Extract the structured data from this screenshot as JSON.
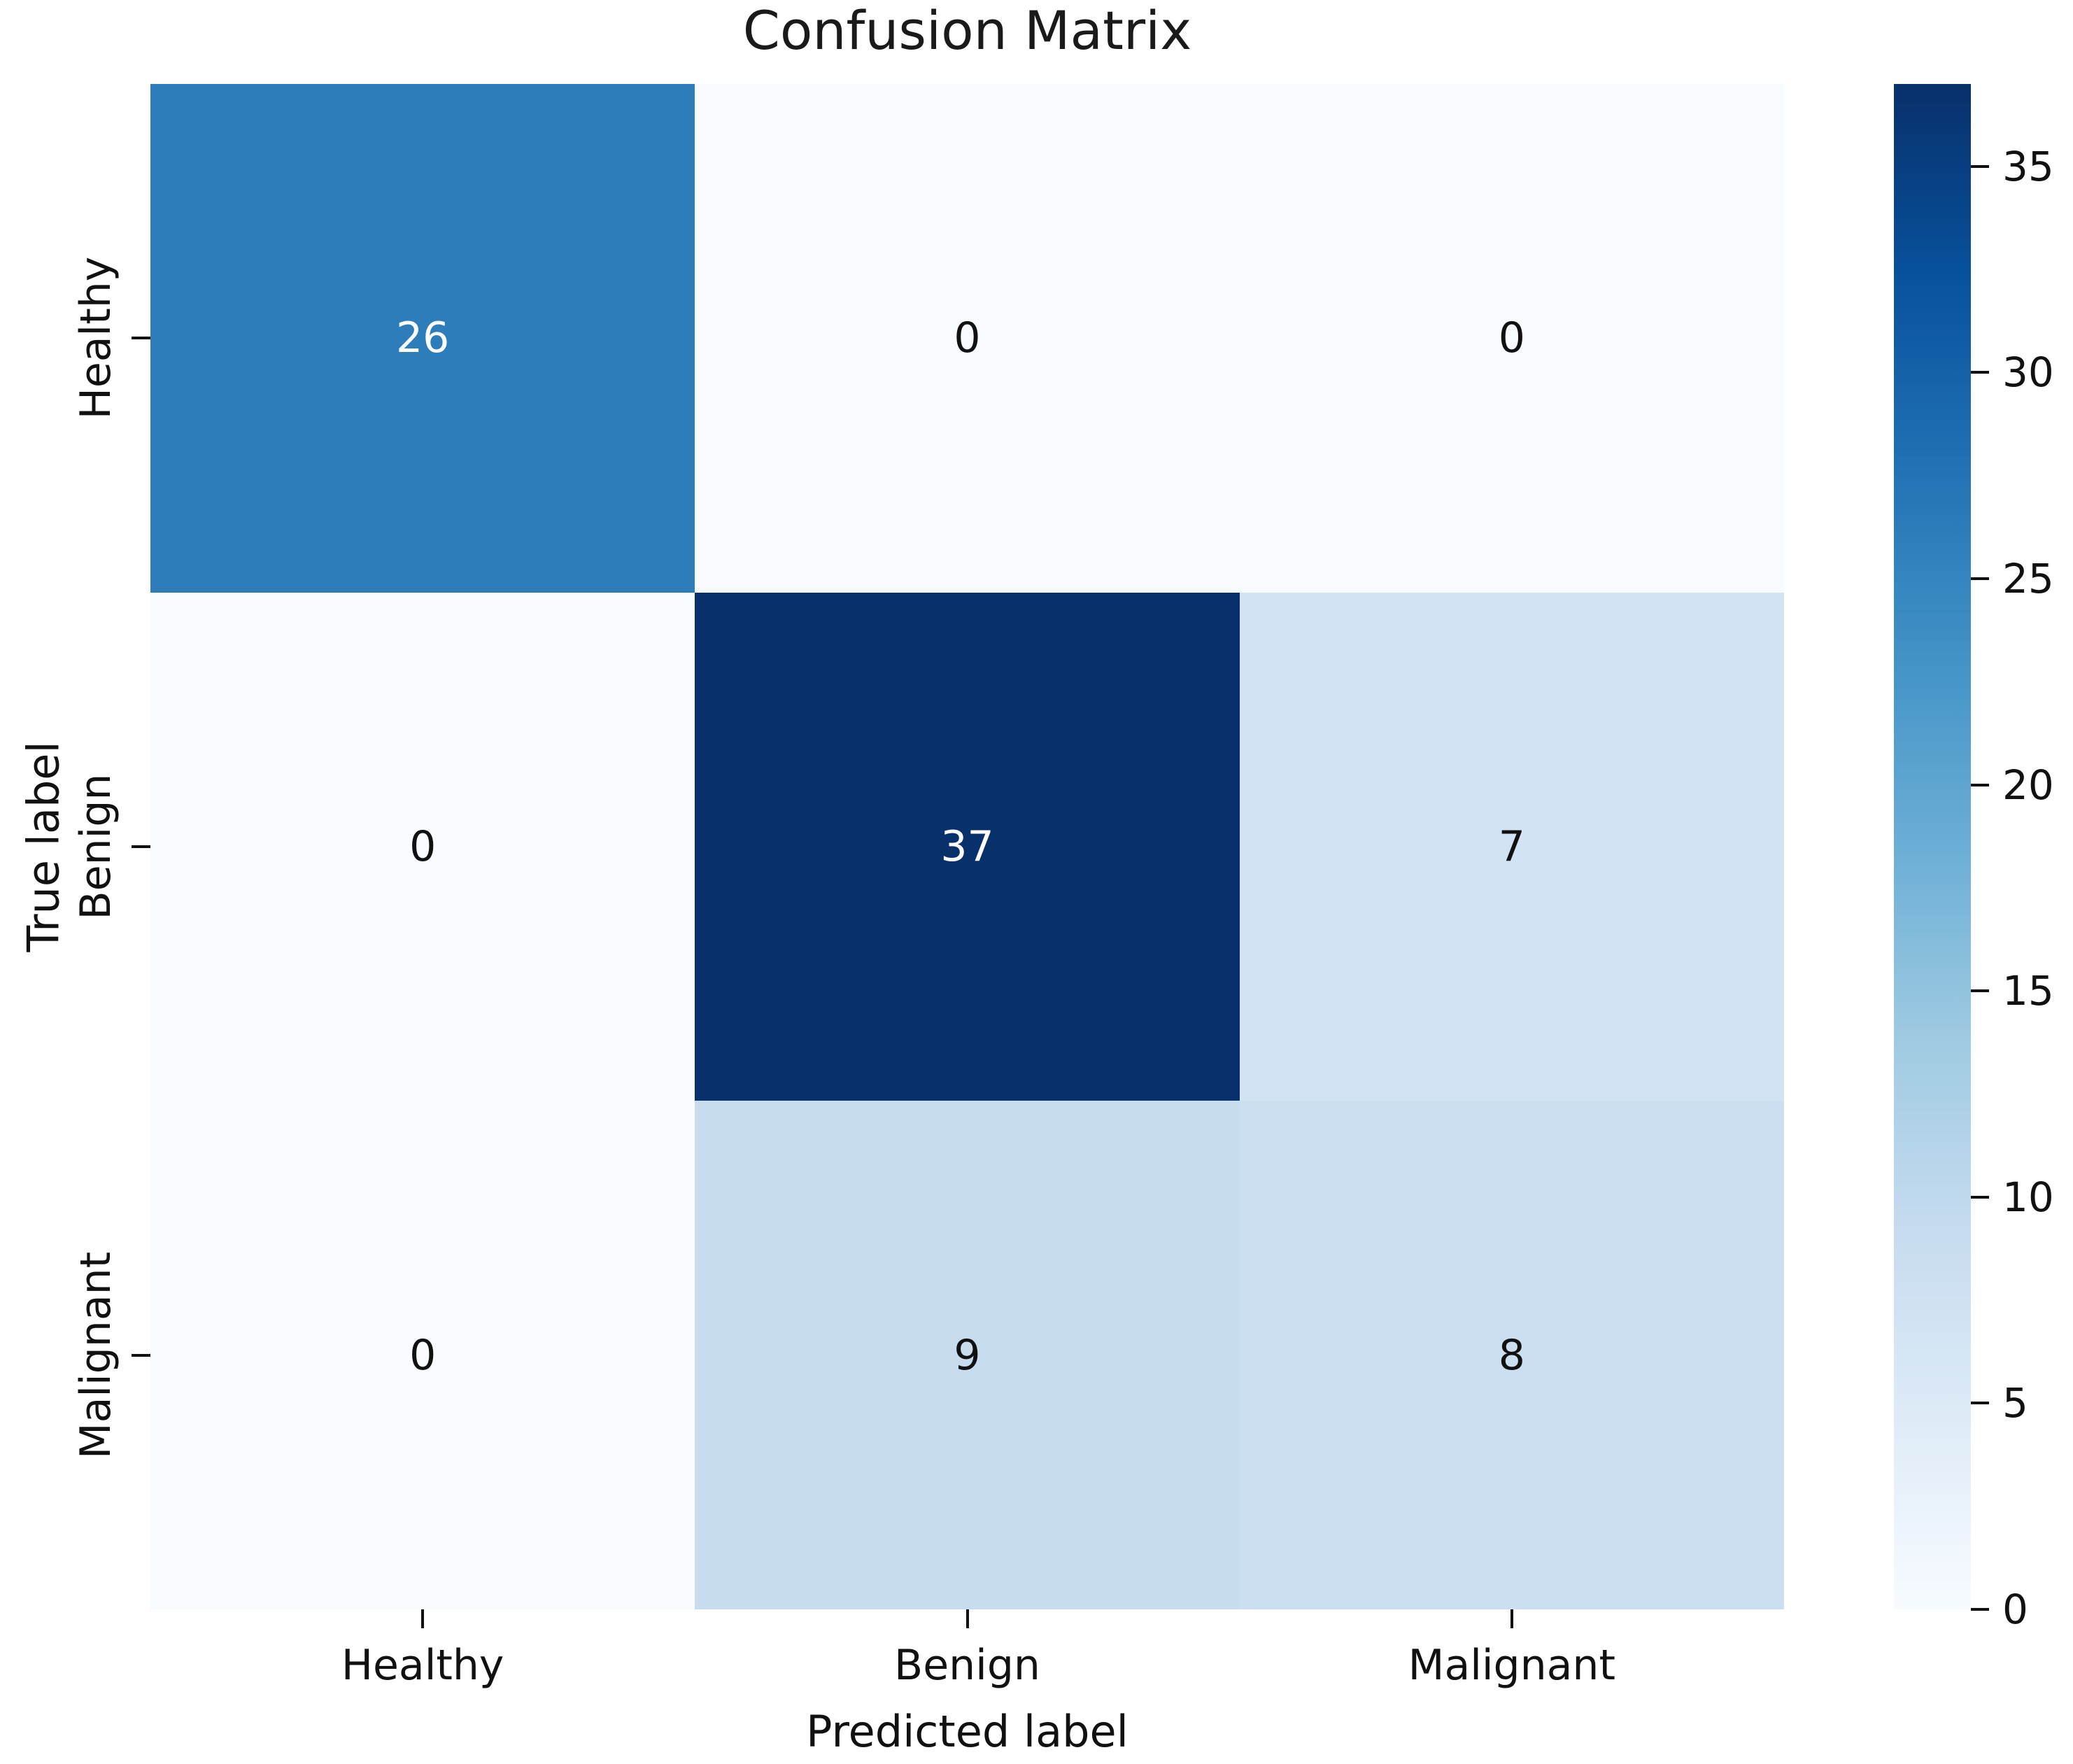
{
  "chart_data": {
    "type": "heatmap",
    "title": "Confusion Matrix",
    "xlabel": "Predicted label",
    "ylabel": "True label",
    "x_categories": [
      "Healthy",
      "Benign",
      "Malignant"
    ],
    "y_categories": [
      "Healthy",
      "Benign",
      "Malignant"
    ],
    "matrix": [
      [
        26,
        0,
        0
      ],
      [
        0,
        37,
        7
      ],
      [
        0,
        9,
        8
      ]
    ],
    "vmin": 0,
    "vmax": 37,
    "colormap": "Blues",
    "colormap_stops": [
      "#f7fbff",
      "#deebf7",
      "#c6dbef",
      "#9ecae1",
      "#6baed6",
      "#4292c6",
      "#2171b5",
      "#08519c",
      "#08306b"
    ],
    "colorbar_ticks": [
      0,
      5,
      10,
      15,
      20,
      25,
      30,
      35
    ],
    "annotation_color_on_dark": "#ffffff",
    "annotation_color_on_light": "#111111",
    "background_color": "#ffffff",
    "grid": "off",
    "legend_position": "right-colorbar"
  }
}
